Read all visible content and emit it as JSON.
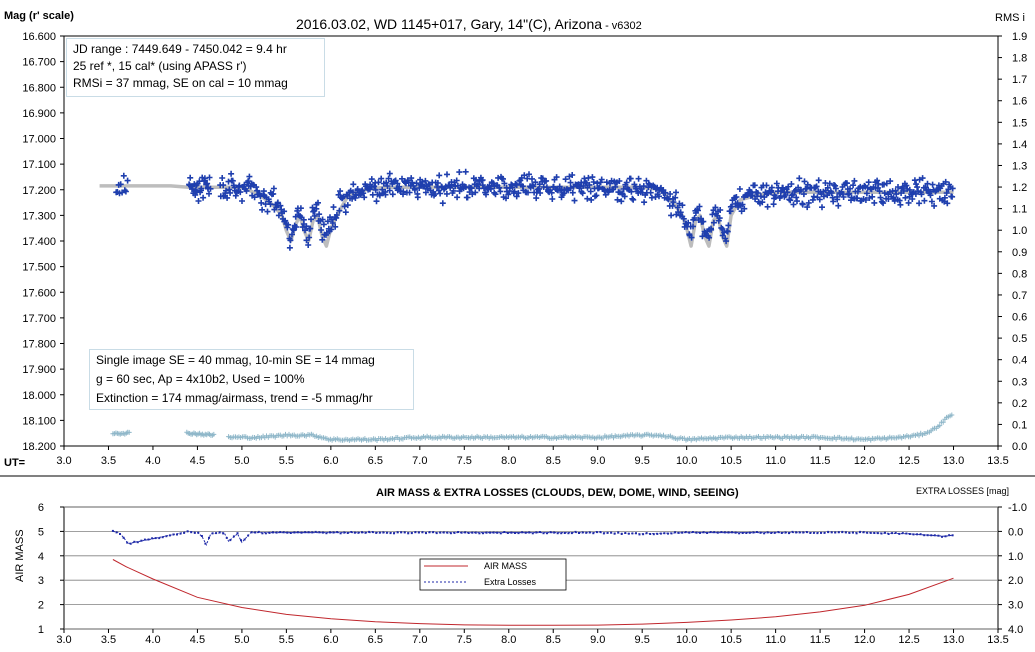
{
  "top": {
    "title": "2016.03.02,  WD 1145+017,  Gary,  14\"(C), Arizona",
    "version": " - v6302",
    "ylabel": "Mag (r' scale)",
    "y2label": "RMS i",
    "xlabel": "UT=",
    "info1": [
      "JD range  : 7449.649  - 7450.042  = 9.4 hr",
      " 25 ref *, 15 cal* (using APASS r')",
      "RMSi = 37 mmag, SE on cal = 10 mmag"
    ],
    "info2": [
      "Single image SE = 40 mmag, 10-min SE = 14 mmag",
      "g = 60 sec, Ap = 4x10b2, Used = 100%",
      "Extinction = 174 mmag/airmass, trend = -5 mmag/hr"
    ]
  },
  "bottom": {
    "title": "AIR MASS & EXTRA LOSSES (CLOUDS, DEW, DOME, WIND, SEEING)",
    "ylabel": "AIR MASS",
    "y2label": "EXTRA LOSSES [mag]",
    "legend": [
      "AIR MASS",
      "Extra Losses"
    ]
  },
  "colors": {
    "points": "#1f3fae",
    "model": "#bdbdbd",
    "rms": "#8fb7c9",
    "airmass": "#c0272d",
    "losses": "#1f2aa8"
  },
  "chart_data": [
    {
      "type": "scatter",
      "title": "2016.03.02,  WD 1145+017,  Gary,  14\"(C), Arizona",
      "xlabel": "UT=",
      "ylabel": "Mag (r' scale)",
      "y2label": "RMS i",
      "xlim": [
        3.0,
        13.5
      ],
      "ylim": [
        16.6,
        18.2
      ],
      "y_inverted": true,
      "y2lim": [
        0.0,
        1.9
      ],
      "x_ticks": [
        "3.0",
        "3.5",
        "4.0",
        "4.5",
        "5.0",
        "5.5",
        "6.0",
        "6.5",
        "7.0",
        "7.5",
        "8.0",
        "8.5",
        "9.0",
        "9.5",
        "10.0",
        "10.5",
        "11.0",
        "11.5",
        "12.0",
        "12.5",
        "13.0",
        "13.5"
      ],
      "y_ticks": [
        "16.600",
        "16.700",
        "16.800",
        "16.900",
        "17.000",
        "17.100",
        "17.200",
        "17.300",
        "17.400",
        "17.500",
        "17.600",
        "17.700",
        "17.800",
        "17.900",
        "18.000",
        "18.100",
        "18.200"
      ],
      "y2_ticks": [
        "0.0",
        "0.1",
        "0.2",
        "0.3",
        "0.4",
        "0.5",
        "0.6",
        "0.7",
        "0.8",
        "0.9",
        "1.0",
        "1.1",
        "1.2",
        "1.3",
        "1.4",
        "1.5",
        "1.6",
        "1.7",
        "1.8",
        "1.9"
      ],
      "series": [
        {
          "kind": "model",
          "x": [
            3.4,
            3.6,
            3.8,
            4.0,
            4.2,
            4.4,
            4.6,
            4.8,
            5.0,
            5.2,
            5.35,
            5.45,
            5.5,
            5.55,
            5.6,
            5.65,
            5.7,
            5.75,
            5.8,
            5.85,
            5.9,
            5.95,
            6.0,
            6.1,
            6.2,
            6.4,
            6.6,
            6.8,
            7.0,
            7.5,
            8.0,
            8.5,
            9.0,
            9.5,
            9.7,
            9.85,
            9.95,
            10.0,
            10.05,
            10.1,
            10.15,
            10.2,
            10.25,
            10.3,
            10.35,
            10.4,
            10.45,
            10.5,
            10.6,
            10.8,
            11.0,
            11.5,
            12.0,
            12.5,
            13.0
          ],
          "y": [
            17.185,
            17.185,
            17.185,
            17.185,
            17.185,
            17.19,
            17.19,
            17.19,
            17.19,
            17.22,
            17.26,
            17.3,
            17.36,
            17.4,
            17.34,
            17.3,
            17.36,
            17.4,
            17.32,
            17.3,
            17.38,
            17.42,
            17.35,
            17.28,
            17.22,
            17.2,
            17.19,
            17.19,
            17.19,
            17.19,
            17.19,
            17.19,
            17.19,
            17.19,
            17.2,
            17.25,
            17.3,
            17.35,
            17.42,
            17.32,
            17.3,
            17.38,
            17.42,
            17.32,
            17.3,
            17.38,
            17.42,
            17.3,
            17.24,
            17.22,
            17.21,
            17.21,
            17.21,
            17.21,
            17.21
          ]
        },
        {
          "kind": "rms",
          "x": [
            3.55,
            3.75,
            4.4,
            4.7,
            4.9,
            5.2,
            5.5,
            5.8,
            6.0,
            6.5,
            7.0,
            7.5,
            8.0,
            8.5,
            9.0,
            9.5,
            9.7,
            10.0,
            10.5,
            11.0,
            11.5,
            12.0,
            12.4,
            12.6,
            12.75,
            12.85,
            12.95,
            13.0
          ],
          "y2": [
            0.06,
            0.06,
            0.06,
            0.05,
            0.04,
            0.04,
            0.05,
            0.05,
            0.03,
            0.03,
            0.04,
            0.04,
            0.04,
            0.04,
            0.04,
            0.05,
            0.05,
            0.03,
            0.04,
            0.04,
            0.04,
            0.03,
            0.04,
            0.05,
            0.07,
            0.1,
            0.14,
            0.15
          ]
        }
      ]
    },
    {
      "type": "line",
      "title": "AIR MASS & EXTRA LOSSES (CLOUDS, DEW, DOME, WIND, SEEING)",
      "xlim": [
        3.0,
        13.5
      ],
      "ylabel": "AIR MASS",
      "ylim": [
        1,
        6
      ],
      "y2label": "EXTRA LOSSES [mag]",
      "y2lim": [
        4.0,
        -1.0
      ],
      "x_ticks": [
        "3.0",
        "3.5",
        "4.0",
        "4.5",
        "5.0",
        "5.5",
        "6.0",
        "6.5",
        "7.0",
        "7.5",
        "8.0",
        "8.5",
        "9.0",
        "9.5",
        "10.0",
        "10.5",
        "11.0",
        "11.5",
        "12.0",
        "12.5",
        "13.0",
        "13.5"
      ],
      "y_ticks": [
        "1",
        "2",
        "3",
        "4",
        "5",
        "6"
      ],
      "y2_ticks": [
        "4.0",
        "3.0",
        "2.0",
        "1.0",
        "0.0",
        "-1.0"
      ],
      "legend": "center",
      "series": [
        {
          "name": "AIR MASS",
          "x": [
            3.55,
            3.7,
            4.0,
            4.5,
            5.0,
            5.5,
            6.0,
            6.5,
            7.0,
            7.5,
            8.0,
            8.5,
            9.0,
            9.5,
            10.0,
            10.5,
            11.0,
            11.5,
            12.0,
            12.5,
            13.0
          ],
          "y": [
            3.85,
            3.55,
            3.05,
            2.3,
            1.88,
            1.6,
            1.42,
            1.3,
            1.22,
            1.17,
            1.15,
            1.15,
            1.16,
            1.2,
            1.27,
            1.37,
            1.5,
            1.7,
            1.97,
            2.42,
            3.08
          ]
        },
        {
          "name": "Extra Losses",
          "x": [
            3.55,
            3.62,
            3.68,
            3.72,
            4.0,
            4.4,
            4.5,
            4.55,
            4.6,
            4.65,
            4.8,
            4.85,
            4.95,
            5.0,
            5.1,
            6.0,
            7.0,
            8.0,
            9.0,
            9.5,
            10.0,
            11.0,
            12.0,
            12.5,
            12.9,
            13.0
          ],
          "y2": [
            0.0,
            0.05,
            0.3,
            0.5,
            0.3,
            0.0,
            0.05,
            0.2,
            0.55,
            0.1,
            0.05,
            0.4,
            0.1,
            0.45,
            0.05,
            0.05,
            0.05,
            0.05,
            0.05,
            0.1,
            0.05,
            0.05,
            0.05,
            0.1,
            0.2,
            0.15
          ]
        }
      ]
    }
  ]
}
